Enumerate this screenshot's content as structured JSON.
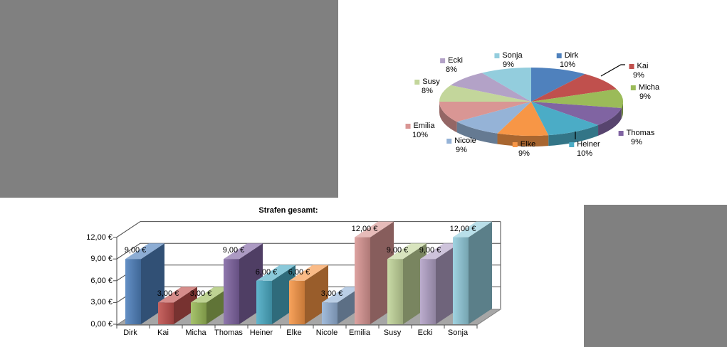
{
  "page": {
    "background": "#ffffff"
  },
  "redactions": {
    "color": "#808080",
    "regions": [
      "top-left",
      "bottom-right"
    ]
  },
  "chart_data": [
    {
      "type": "pie",
      "style": "3d-pie",
      "title": "",
      "legend_position": "labels-around-pie",
      "label_format": "name above percent, with color swatch",
      "labels": [
        "Dirk",
        "Kai",
        "Micha",
        "Thomas",
        "Heiner",
        "Elke",
        "Nicole",
        "Emilia",
        "Susy",
        "Ecki",
        "Sonja"
      ],
      "values_pct": [
        10,
        9,
        9,
        9,
        10,
        9,
        9,
        10,
        8,
        8,
        9
      ],
      "pct_labels": [
        "10%",
        "9%",
        "9%",
        "9%",
        "10%",
        "9%",
        "9%",
        "10%",
        "8%",
        "8%",
        "9%"
      ],
      "colors": [
        "#4F81BD",
        "#C0504D",
        "#9BBB59",
        "#8064A2",
        "#4BACC6",
        "#F79646",
        "#95B3D7",
        "#D99694",
        "#C3D69B",
        "#B3A2C7",
        "#93CDDD"
      ],
      "leader_lines": [
        "Kai",
        "Heiner"
      ]
    },
    {
      "type": "bar",
      "style": "3d-column",
      "title": "Strafen gesamt:",
      "categories": [
        "Dirk",
        "Kai",
        "Micha",
        "Thomas",
        "Heiner",
        "Elke",
        "Nicole",
        "Emilia",
        "Susy",
        "Ecki",
        "Sonja"
      ],
      "values": [
        9,
        3,
        3,
        9,
        6,
        6,
        3,
        12,
        9,
        9,
        12
      ],
      "data_labels": [
        "9,00 €",
        "3,00 €",
        "3,00 €",
        "9,00 €",
        "6,00 €",
        "6,00 €",
        "3,00 €",
        "12,00 €",
        "9,00 €",
        "9,00 €",
        "12,00 €"
      ],
      "y_tick_labels": [
        "0,00 €",
        "3,00 €",
        "6,00 €",
        "9,00 €",
        "12,00 €"
      ],
      "ylim": [
        0,
        12
      ],
      "y_step": 3,
      "grid": true,
      "legend_position": "none",
      "colors": [
        "#4F81BD",
        "#C0504D",
        "#9BBB59",
        "#8064A2",
        "#4BACC6",
        "#F79646",
        "#95B3D7",
        "#D99694",
        "#C3D69B",
        "#B3A2C7",
        "#93CDDD"
      ],
      "floor_color": "#A6A6A6",
      "axis_color": "#4A4A4A"
    }
  ]
}
